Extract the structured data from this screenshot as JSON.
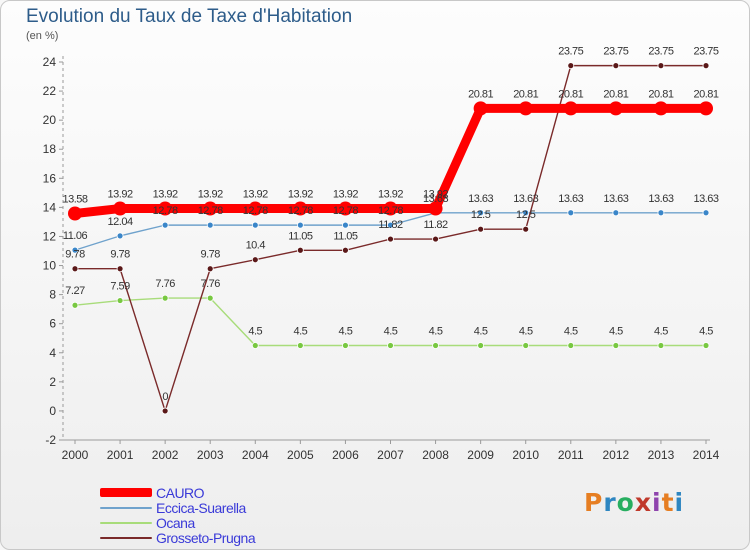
{
  "title": "Evolution du Taux de Taxe d'Habitation",
  "subtitle": "(en %)",
  "logo": {
    "text": "Proxiti",
    "colors": [
      "#e67e22",
      "#2e86c1",
      "#27ae60",
      "#c0392b",
      "#8e44ad",
      "#e67e22",
      "#2e86c1"
    ]
  },
  "chart_data": {
    "type": "line",
    "title": "Evolution du Taux de Taxe d'Habitation",
    "ylabel": "(en %)",
    "xlabel": "",
    "ylim": [
      -2,
      24
    ],
    "yticks": [
      -2,
      0,
      2,
      4,
      6,
      8,
      10,
      12,
      14,
      16,
      18,
      20,
      22,
      24
    ],
    "grid": false,
    "legend_position": "bottom-left",
    "categories": [
      "2000",
      "2001",
      "2002",
      "2003",
      "2004",
      "2005",
      "2006",
      "2007",
      "2008",
      "2009",
      "2010",
      "2011",
      "2012",
      "2013",
      "2014"
    ],
    "series": [
      {
        "name": "Eccica-Suarella",
        "color": "#6fa2cc",
        "marker": "#3a86c9",
        "values": [
          11.06,
          12.04,
          12.78,
          12.78,
          12.78,
          12.78,
          12.78,
          12.78,
          13.63,
          13.63,
          13.63,
          13.63,
          13.63,
          13.63,
          13.63
        ],
        "labels": [
          "11.06",
          "12.04",
          "12.78",
          "12.78",
          "12.78",
          "12.78",
          "12.78",
          "12.78",
          "13.63",
          "13.63",
          "13.63",
          "13.63",
          "13.63",
          "13.63",
          "13.63"
        ]
      },
      {
        "name": "Ocana",
        "color": "#a8dc7a",
        "marker": "#78c841",
        "values": [
          7.27,
          7.59,
          7.76,
          7.76,
          4.5,
          4.5,
          4.5,
          4.5,
          4.5,
          4.5,
          4.5,
          4.5,
          4.5,
          4.5,
          4.5
        ],
        "labels": [
          "7.27",
          "7.59",
          "7.76",
          "7.76",
          "4.5",
          "4.5",
          "4.5",
          "4.5",
          "4.5",
          "4.5",
          "4.5",
          "4.5",
          "4.5",
          "4.5",
          "4.5"
        ]
      },
      {
        "name": "Grosseto-Prugna",
        "color": "#7a2a2a",
        "marker": "#5a1818",
        "values": [
          9.78,
          9.78,
          0,
          9.78,
          10.4,
          11.05,
          11.05,
          11.82,
          11.82,
          12.5,
          12.5,
          23.75,
          23.75,
          23.75,
          23.75
        ],
        "labels": [
          "9.78",
          "9.78",
          "0",
          "9.78",
          "10.4",
          "11.05",
          "11.05",
          "11.82",
          "11.82",
          "12.5",
          "12.5",
          "23.75",
          "23.75",
          "23.75",
          "23.75"
        ]
      },
      {
        "name": "CAURO",
        "color": "#ff0000",
        "marker": "#ff0000",
        "values": [
          13.58,
          13.92,
          13.92,
          13.92,
          13.92,
          13.92,
          13.92,
          13.92,
          13.92,
          20.81,
          20.81,
          20.81,
          20.81,
          20.81,
          20.81
        ],
        "labels": [
          "13.58",
          "13.92",
          "13.92",
          "13.92",
          "13.92",
          "13.92",
          "13.92",
          "13.92",
          "13.92",
          "20.81",
          "20.81",
          "20.81",
          "20.81",
          "20.81",
          "20.81"
        ]
      }
    ]
  },
  "legend": [
    {
      "label": "CAURO",
      "color": "#ff0000"
    },
    {
      "label": "Eccica-Suarella",
      "color": "#6fa2cc"
    },
    {
      "label": "Ocana",
      "color": "#a8dc7a"
    },
    {
      "label": "Grosseto-Prugna",
      "color": "#7a2a2a"
    }
  ]
}
